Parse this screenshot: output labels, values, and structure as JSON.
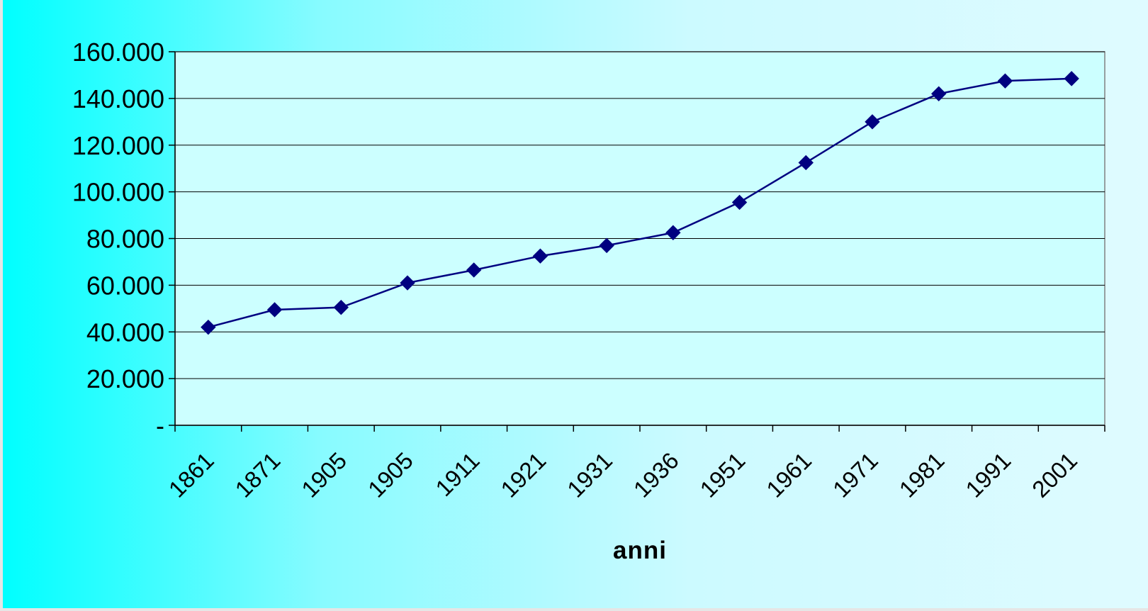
{
  "chart_data": {
    "type": "line",
    "title": "",
    "xlabel": "anni",
    "ylabel": "",
    "categories": [
      "1861",
      "1871",
      "1905",
      "1905",
      "1911",
      "1921",
      "1931",
      "1936",
      "1951",
      "1961",
      "1971",
      "1981",
      "1991",
      "2001"
    ],
    "series": [
      {
        "values": [
          42000,
          49500,
          50500,
          61000,
          66500,
          72500,
          77000,
          82500,
          95500,
          112500,
          130000,
          142000,
          147500,
          148500
        ],
        "color": "#000080",
        "marker": "diamond"
      }
    ],
    "ylim": [
      0,
      160000
    ],
    "yticks": [
      {
        "value": 0,
        "label": "-"
      },
      {
        "value": 20000,
        "label": "20.000"
      },
      {
        "value": 40000,
        "label": "40.000"
      },
      {
        "value": 60000,
        "label": "60.000"
      },
      {
        "value": 80000,
        "label": "80.000"
      },
      {
        "value": 100000,
        "label": "100.000"
      },
      {
        "value": 120000,
        "label": "120.000"
      },
      {
        "value": 140000,
        "label": "140.000"
      },
      {
        "value": 160000,
        "label": "160.000"
      }
    ],
    "grid": true,
    "legend": "none",
    "colors": {
      "plot_background": "#ccffff",
      "series": "#000080",
      "gradient_left": "#00ffff",
      "gradient_right": "#dffbff"
    }
  }
}
